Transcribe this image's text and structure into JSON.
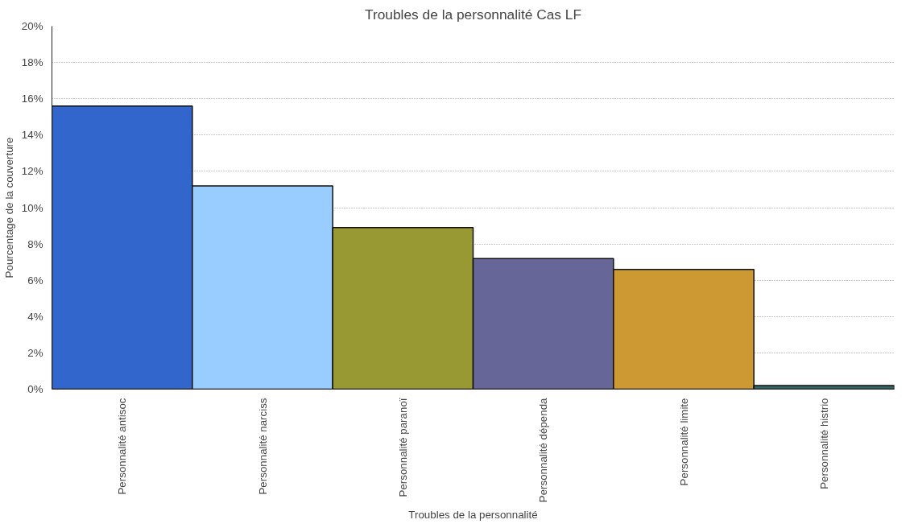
{
  "chart_data": {
    "type": "bar",
    "title": "Troubles de la personnalité Cas LF",
    "xlabel": "Troubles de la personnalité",
    "ylabel": "Pourcentage de la couverture",
    "categories": [
      "Personnalité antisoc",
      "Personnalité narciss",
      "Personnalité paranoï",
      "Personnalité dépenda",
      "Personnalité limite",
      "Personnalité histrio"
    ],
    "values": [
      15.6,
      11.2,
      8.9,
      7.2,
      6.6,
      0.2
    ],
    "colors": [
      "#3366cc",
      "#99ccff",
      "#999933",
      "#666699",
      "#cc9933",
      "#336666"
    ],
    "ylim": [
      0,
      20
    ],
    "yticks": [
      {
        "value": 0,
        "label": "0%"
      },
      {
        "value": 2,
        "label": "2%"
      },
      {
        "value": 4,
        "label": "4%"
      },
      {
        "value": 6,
        "label": "6%"
      },
      {
        "value": 8,
        "label": "8%"
      },
      {
        "value": 10,
        "label": "10%"
      },
      {
        "value": 12,
        "label": "12%"
      },
      {
        "value": 14,
        "label": "14%"
      },
      {
        "value": 16,
        "label": "16%"
      },
      {
        "value": 18,
        "label": "18%"
      },
      {
        "value": 20,
        "label": "20%"
      }
    ],
    "grid": "y"
  }
}
